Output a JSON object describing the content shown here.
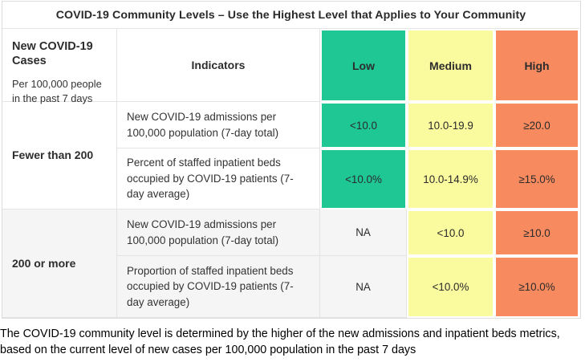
{
  "title": "COVID-19 Community Levels – Use the Highest Level that Applies to Your Community",
  "header": {
    "cases_title": "New COVID-19 Cases",
    "cases_subtitle": "Per 100,000 people in the past 7 days",
    "indicators_label": "Indicators",
    "levels": [
      "Low",
      "Medium",
      "High"
    ]
  },
  "colors": {
    "low": "#1fc795",
    "medium": "#fafa9e",
    "high": "#f78b5f",
    "row_alt": "#f5f5f5",
    "grid": "#e4e4e4"
  },
  "groups": [
    {
      "cases": "Fewer than 200",
      "rows": [
        {
          "indicator": "New COVID-19 admissions per 100,000 population (7-day total)",
          "low": "<10.0",
          "medium": "10.0-19.9",
          "high": "≥20.0"
        },
        {
          "indicator": "Percent of staffed inpatient beds occupied by COVID-19 patients (7-day average)",
          "low": "<10.0%",
          "medium": "10.0-14.9%",
          "high": "≥15.0%"
        }
      ]
    },
    {
      "cases": "200 or more",
      "rows": [
        {
          "indicator": "New COVID-19 admissions per 100,000 population (7-day total)",
          "low": "NA",
          "medium": "<10.0",
          "high": "≥10.0"
        },
        {
          "indicator": "Proportion of staffed inpatient beds occupied by COVID-19 patients (7-day average)",
          "low": "NA",
          "medium": "<10.0%",
          "high": "≥10.0%"
        }
      ]
    }
  ],
  "footnote": "The COVID-19 community level is determined by the higher of the new admissions and inpatient beds metrics, based on the current level of new cases per 100,000 population in the past 7 days",
  "chart_data": {
    "type": "table",
    "title": "COVID-19 Community Levels – Use the Highest Level that Applies to Your Community",
    "columns": [
      "New COVID-19 Cases Per 100,000 people in the past 7 days",
      "Indicators",
      "Low",
      "Medium",
      "High"
    ],
    "rows": [
      [
        "Fewer than 200",
        "New COVID-19 admissions per 100,000 population (7-day total)",
        "<10.0",
        "10.0-19.9",
        "≥20.0"
      ],
      [
        "Fewer than 200",
        "Percent of staffed inpatient beds occupied by COVID-19 patients (7-day average)",
        "<10.0%",
        "10.0-14.9%",
        "≥15.0%"
      ],
      [
        "200 or more",
        "New COVID-19 admissions per 100,000 population (7-day total)",
        "NA",
        "<10.0",
        "≥10.0"
      ],
      [
        "200 or more",
        "Proportion of staffed inpatient beds occupied by COVID-19 patients (7-day average)",
        "NA",
        "<10.0%",
        "≥10.0%"
      ]
    ],
    "legend": {
      "Low": "#1fc795",
      "Medium": "#fafa9e",
      "High": "#f78b5f"
    },
    "footnote": "The COVID-19 community level is determined by the higher of the new admissions and inpatient beds metrics, based on the current level of new cases per 100,000 population in the past 7 days"
  }
}
